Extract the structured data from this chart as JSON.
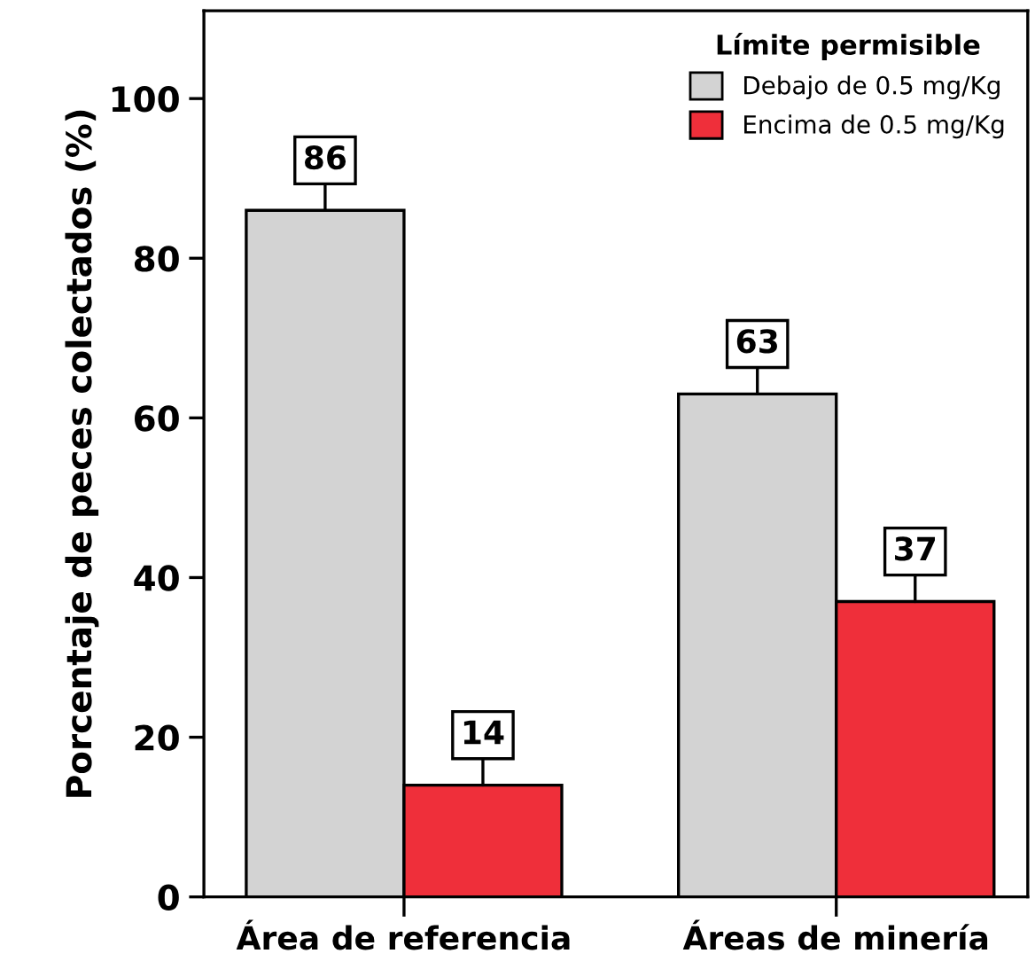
{
  "chart_data": {
    "type": "bar",
    "ylabel": "Porcentaje de peces colectados (%)",
    "legend_title": "Límite permisible",
    "categories": [
      "Área de referencia",
      "Áreas de minería"
    ],
    "series": [
      {
        "name": "Debajo de 0.5 mg/Kg",
        "color": "#d3d3d3",
        "values": [
          86,
          63
        ]
      },
      {
        "name": "Encima de 0.5 mg/Kg",
        "color": "#ef2f3a",
        "values": [
          14,
          37
        ]
      }
    ],
    "ylim": [
      0,
      111
    ],
    "yticks": [
      0,
      20,
      40,
      60,
      80,
      100
    ],
    "grid": false,
    "legend": "top right",
    "data_labels": true
  }
}
